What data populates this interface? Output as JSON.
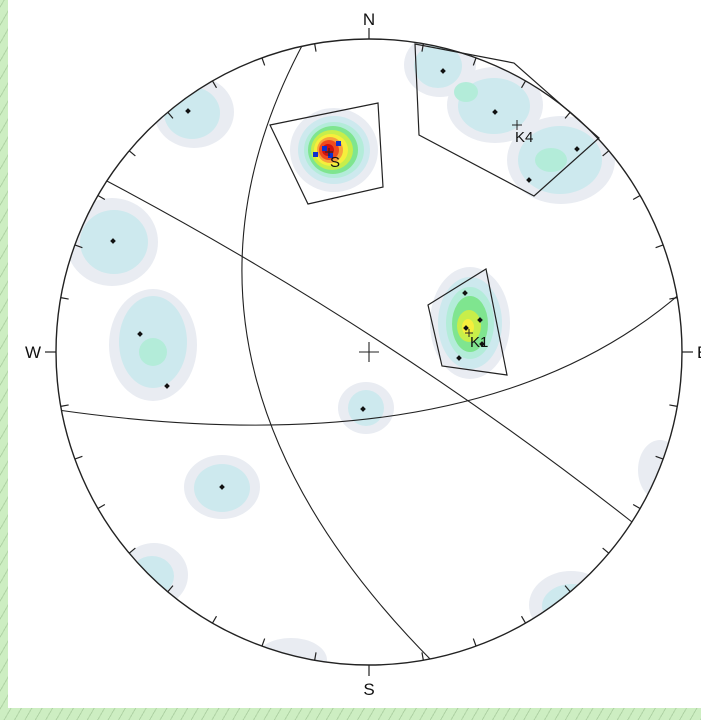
{
  "net": {
    "directions": {
      "north": "N",
      "east": "E",
      "south": "S",
      "west": "W"
    },
    "colors": {
      "outline": "#222222",
      "contour_levels": [
        "#e9ecf2",
        "#cde9ee",
        "#b3ecd9",
        "#7fe58f",
        "#c8ee4a",
        "#f6ef3c",
        "#f7a23c",
        "#f04a1e",
        "#d01010"
      ],
      "pole": "#111111",
      "cluster_pole": "#1030d0"
    }
  },
  "sets": [
    {
      "id": "s",
      "label": "S"
    },
    {
      "id": "k1",
      "label": "K1"
    },
    {
      "id": "k4",
      "label": "K4"
    }
  ]
}
